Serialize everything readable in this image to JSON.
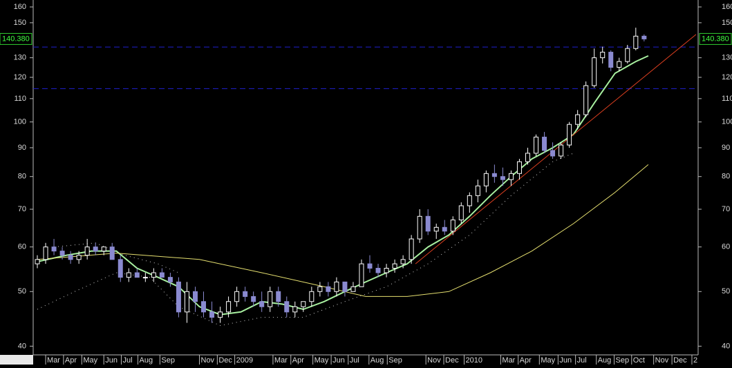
{
  "chart_data": {
    "type": "candlestick",
    "log_scale": true,
    "ylim": [
      38.6,
      164.6
    ],
    "yticks": [
      40,
      50,
      60,
      70,
      80,
      90,
      100,
      110,
      120,
      130,
      150,
      160
    ],
    "xlim": [
      0,
      160
    ],
    "xticks": [
      {
        "value": 3,
        "label": "Mar"
      },
      {
        "value": 7.3,
        "label": "Apr"
      },
      {
        "value": 11.7,
        "label": "May"
      },
      {
        "value": 17,
        "label": "Jun"
      },
      {
        "value": 21.2,
        "label": "Jul"
      },
      {
        "value": 25.2,
        "label": "Aug"
      },
      {
        "value": 30.5,
        "label": "Sep"
      },
      {
        "value": 40,
        "label": "Nov"
      },
      {
        "value": 44.3,
        "label": "Dec"
      },
      {
        "value": 48.5,
        "label": "2009"
      },
      {
        "value": 57.7,
        "label": "Mar"
      },
      {
        "value": 62,
        "label": "Apr"
      },
      {
        "value": 67.3,
        "label": "May"
      },
      {
        "value": 71.7,
        "label": "Jun"
      },
      {
        "value": 75.8,
        "label": "Jul"
      },
      {
        "value": 80.8,
        "label": "Aug"
      },
      {
        "value": 85.2,
        "label": "Sep"
      },
      {
        "value": 94.5,
        "label": "Nov"
      },
      {
        "value": 98.8,
        "label": "Dec"
      },
      {
        "value": 103.7,
        "label": "2010"
      },
      {
        "value": 112.5,
        "label": "Mar"
      },
      {
        "value": 116.7,
        "label": "Apr"
      },
      {
        "value": 121.8,
        "label": "May"
      },
      {
        "value": 126.3,
        "label": "Jun"
      },
      {
        "value": 130.5,
        "label": "Jul"
      },
      {
        "value": 135.5,
        "label": "Aug"
      },
      {
        "value": 139.8,
        "label": "Sep"
      },
      {
        "value": 144,
        "label": "Oct"
      },
      {
        "value": 149.3,
        "label": "Nov"
      },
      {
        "value": 153.7,
        "label": "Dec"
      },
      {
        "value": 158.5,
        "label": "2"
      }
    ],
    "up_color": "#ffffff",
    "down_color": "#8a8ad0",
    "candles": [
      [
        1,
        56,
        58,
        55,
        57
      ],
      [
        3,
        57,
        61,
        56,
        60
      ],
      [
        5,
        60,
        62,
        58,
        59
      ],
      [
        7,
        59,
        60,
        57,
        58
      ],
      [
        9,
        58,
        59,
        56,
        57
      ],
      [
        11,
        57,
        59,
        56,
        58
      ],
      [
        13,
        58,
        62,
        57,
        60
      ],
      [
        15,
        60,
        61,
        58,
        59
      ],
      [
        17,
        59,
        60,
        58,
        60
      ],
      [
        19,
        60,
        61,
        57,
        57
      ],
      [
        21,
        57,
        58,
        52,
        53
      ],
      [
        23,
        53,
        55,
        52,
        54
      ],
      [
        25,
        54,
        55,
        53,
        53
      ],
      [
        27,
        53,
        54,
        52,
        53
      ],
      [
        29,
        53,
        55,
        52,
        54
      ],
      [
        31,
        54,
        55,
        53,
        53
      ],
      [
        33,
        53,
        54,
        51,
        52
      ],
      [
        35,
        52,
        53,
        45,
        46
      ],
      [
        37,
        46,
        52,
        44,
        50
      ],
      [
        39,
        50,
        51,
        46,
        48
      ],
      [
        41,
        48,
        50,
        45,
        46
      ],
      [
        43,
        46,
        48,
        44,
        45
      ],
      [
        45,
        45,
        47,
        44,
        46
      ],
      [
        47,
        46,
        49,
        45,
        48
      ],
      [
        49,
        48,
        51,
        47,
        50
      ],
      [
        51,
        50,
        51,
        48,
        49
      ],
      [
        53,
        49,
        50,
        47,
        48
      ],
      [
        55,
        48,
        50,
        46,
        47
      ],
      [
        57,
        47,
        51,
        46,
        50
      ],
      [
        59,
        50,
        51,
        47,
        48
      ],
      [
        61,
        48,
        49,
        45,
        46
      ],
      [
        63,
        46,
        48,
        45,
        47
      ],
      [
        65,
        47,
        48,
        46,
        48
      ],
      [
        67,
        48,
        51,
        47,
        50
      ],
      [
        69,
        50,
        52,
        49,
        51
      ],
      [
        71,
        51,
        52,
        49,
        50
      ],
      [
        73,
        50,
        53,
        49,
        52
      ],
      [
        75,
        52,
        52,
        49,
        50
      ],
      [
        77,
        50,
        52,
        50,
        51
      ],
      [
        79,
        51,
        57,
        51,
        56
      ],
      [
        81,
        56,
        58,
        54,
        55
      ],
      [
        83,
        55,
        56,
        53,
        54
      ],
      [
        85,
        54,
        56,
        53,
        55
      ],
      [
        87,
        55,
        57,
        54,
        56
      ],
      [
        89,
        56,
        58,
        55,
        57
      ],
      [
        91,
        57,
        63,
        56,
        62
      ],
      [
        93,
        62,
        70,
        61,
        68
      ],
      [
        95,
        68,
        70,
        63,
        64
      ],
      [
        97,
        64,
        66,
        62,
        65
      ],
      [
        99,
        65,
        67,
        63,
        64
      ],
      [
        101,
        64,
        68,
        63,
        67
      ],
      [
        103,
        67,
        72,
        66,
        71
      ],
      [
        105,
        71,
        75,
        69,
        74
      ],
      [
        107,
        74,
        79,
        72,
        77
      ],
      [
        109,
        77,
        82,
        75,
        81
      ],
      [
        111,
        81,
        84,
        78,
        80
      ],
      [
        113,
        80,
        83,
        77,
        79
      ],
      [
        115,
        79,
        82,
        77,
        81
      ],
      [
        117,
        81,
        86,
        79,
        85
      ],
      [
        119,
        85,
        90,
        84,
        88
      ],
      [
        121,
        88,
        95,
        87,
        94
      ],
      [
        123,
        94,
        96,
        88,
        89
      ],
      [
        125,
        89,
        92,
        86,
        87
      ],
      [
        127,
        87,
        92,
        86,
        91
      ],
      [
        129,
        91,
        100,
        90,
        99
      ],
      [
        131,
        99,
        105,
        97,
        103
      ],
      [
        133,
        103,
        118,
        102,
        116
      ],
      [
        135,
        116,
        135,
        115,
        130
      ],
      [
        137,
        130,
        136,
        127,
        133
      ],
      [
        139,
        133,
        134,
        123,
        125
      ],
      [
        141,
        125,
        130,
        123,
        128
      ],
      [
        143,
        128,
        137,
        127,
        135
      ],
      [
        145,
        135,
        147,
        134,
        142
      ],
      [
        147,
        142,
        143,
        139,
        140.38
      ]
    ],
    "lines": [
      {
        "color": "#a8f0a0",
        "width": 2,
        "x": [
          1,
          8,
          14,
          20,
          25,
          30,
          35,
          40,
          45,
          50,
          55,
          60,
          65,
          70,
          75,
          80,
          85,
          90,
          95,
          100,
          105,
          110,
          115,
          120,
          125,
          130,
          135,
          140,
          145,
          148
        ],
        "values": [
          56.5,
          58,
          59,
          59,
          55,
          53,
          51,
          47,
          45.5,
          46,
          48,
          47.5,
          46.5,
          48,
          50,
          52,
          54,
          56,
          60,
          63,
          68,
          74,
          80,
          86,
          90,
          95,
          108,
          122,
          128,
          131
        ]
      },
      {
        "color": "#e6e070",
        "width": 1,
        "x": [
          1,
          20,
          40,
          55,
          70,
          80,
          90,
          100,
          110,
          120,
          130,
          140,
          148
        ],
        "values": [
          57,
          58.5,
          57,
          54,
          51,
          49,
          49,
          50,
          54,
          59,
          66,
          75,
          84
        ]
      },
      {
        "color": "#e04020",
        "width": 1,
        "x": [
          92,
          159.5
        ],
        "values": [
          56,
          143
        ]
      },
      {
        "color": "#cccccc",
        "width": 1,
        "dash": true,
        "x": [
          1,
          10,
          20,
          28,
          35,
          45,
          55,
          65,
          75,
          85,
          95,
          105,
          115,
          125,
          130
        ],
        "values": [
          46.5,
          50,
          54,
          53,
          47,
          43.5,
          45,
          45,
          48,
          51,
          56,
          63,
          74,
          85,
          88
        ]
      },
      {
        "color": "#cccccc",
        "width": 1,
        "dash": true,
        "x": [
          5,
          15,
          22,
          30,
          35
        ],
        "values": [
          60,
          61,
          58,
          56,
          54
        ]
      }
    ],
    "hlines": [
      135.8,
      114.6
    ],
    "hline_color": "#2020d0",
    "last_price": {
      "value": 140.38,
      "label": "140.380"
    }
  }
}
